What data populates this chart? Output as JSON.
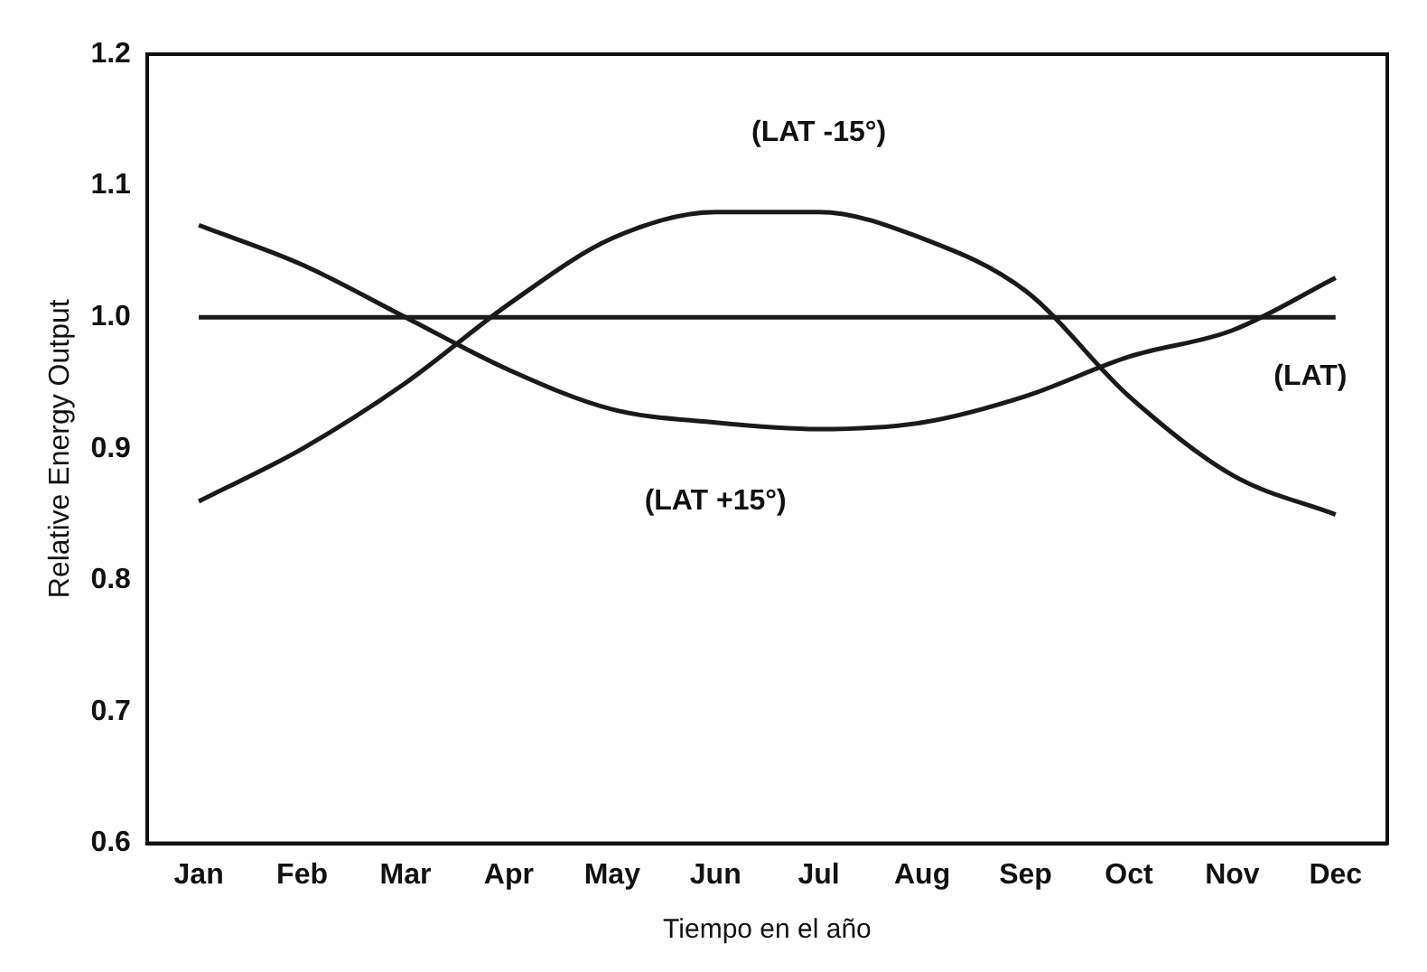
{
  "chart_data": {
    "type": "line",
    "xlabel": "Tiempo en el año",
    "ylabel": "Relative Energy Output",
    "categories": [
      "Jan",
      "Feb",
      "Mar",
      "Apr",
      "May",
      "Jun",
      "Jul",
      "Aug",
      "Sep",
      "Oct",
      "Nov",
      "Dec"
    ],
    "series": [
      {
        "name": "(LAT -15°)",
        "color": "#1a1a1a",
        "values": [
          0.86,
          0.9,
          0.95,
          1.01,
          1.06,
          1.08,
          1.08,
          1.06,
          1.02,
          0.94,
          0.88,
          0.85
        ]
      },
      {
        "name": "(LAT)",
        "color": "#1a1a1a",
        "values": [
          1.0,
          1.0,
          1.0,
          1.0,
          1.0,
          1.0,
          1.0,
          1.0,
          1.0,
          1.0,
          1.0,
          1.0
        ]
      },
      {
        "name": "(LAT +15°)",
        "color": "#1a1a1a",
        "values": [
          1.07,
          1.04,
          1.0,
          0.96,
          0.93,
          0.92,
          0.915,
          0.92,
          0.94,
          0.97,
          0.99,
          1.03
        ]
      }
    ],
    "ylim": [
      0.6,
      1.2
    ],
    "yticks": [
      {
        "value": 0.6,
        "label": "0.6"
      },
      {
        "value": 0.7,
        "label": "0.7"
      },
      {
        "value": 0.8,
        "label": "0.8"
      },
      {
        "value": 0.9,
        "label": "0.9"
      },
      {
        "value": 1.0,
        "label": "1.0"
      },
      {
        "value": 1.1,
        "label": "1.1"
      },
      {
        "value": 1.2,
        "label": "1.2"
      }
    ],
    "grid": false,
    "legend": false,
    "marker": "none",
    "line_style": "solid"
  }
}
